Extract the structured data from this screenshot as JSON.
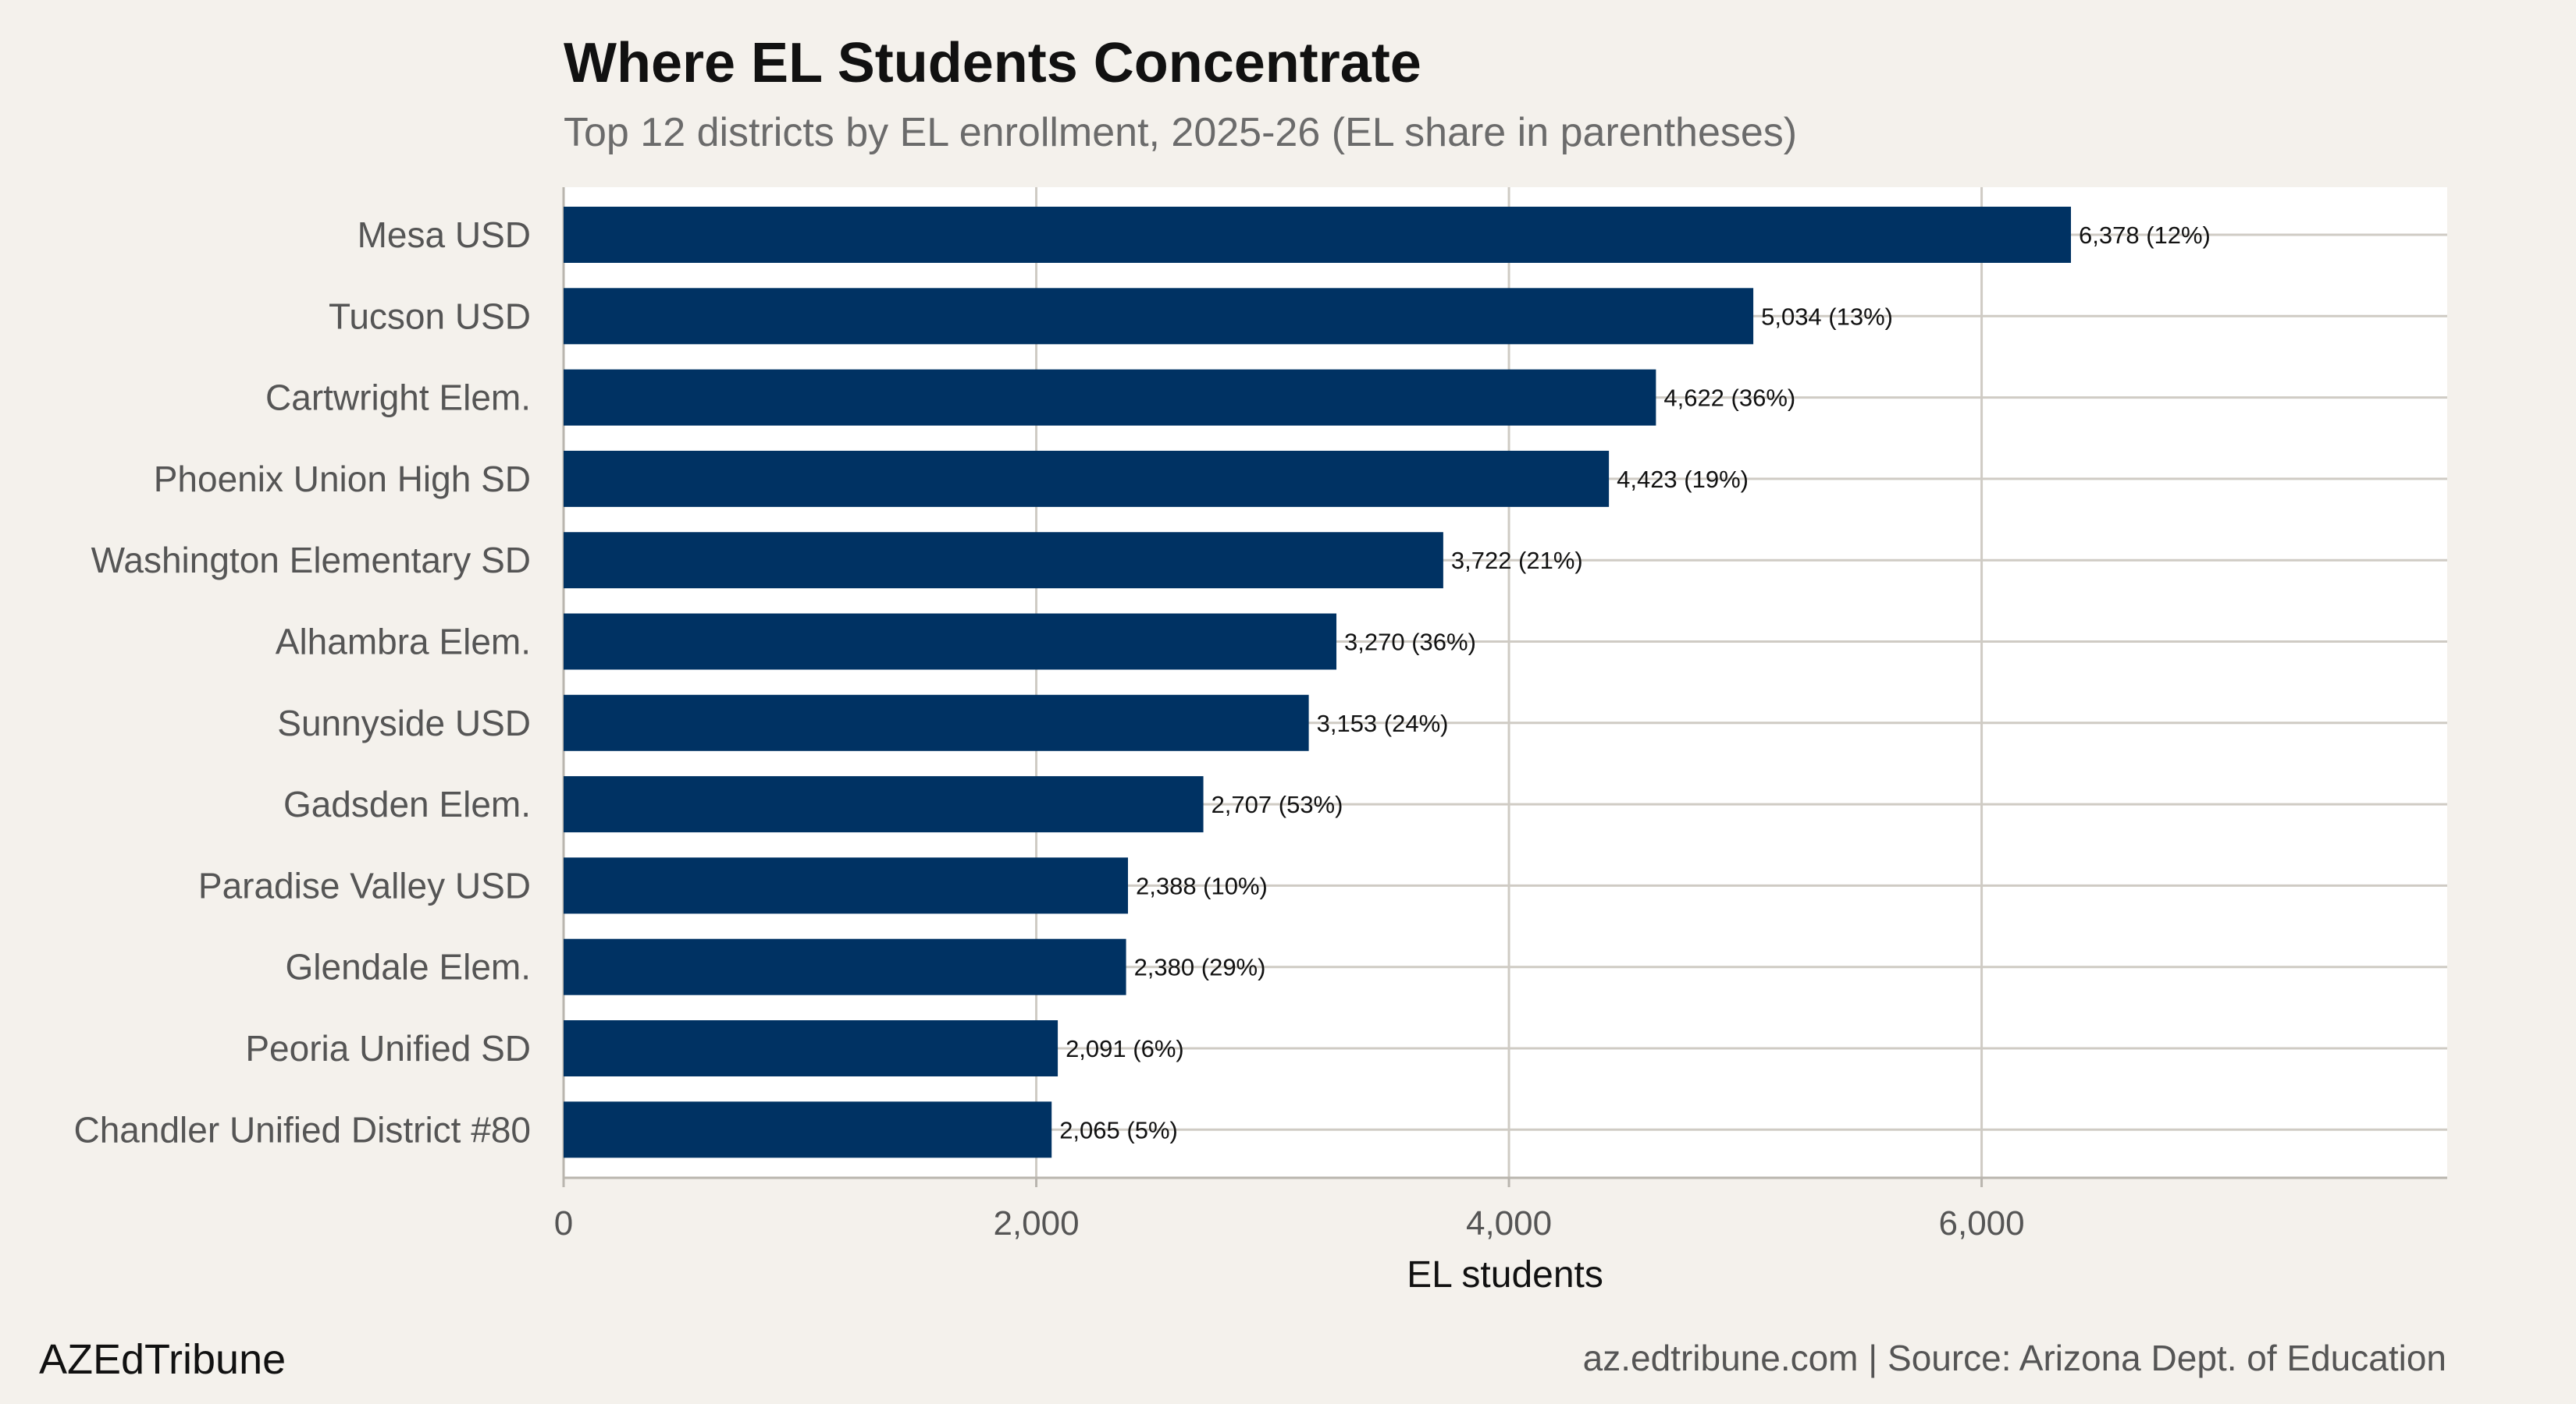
{
  "chart_data": {
    "type": "bar",
    "orientation": "horizontal",
    "title": "Where EL Students Concentrate",
    "subtitle": "Top 12 districts by EL enrollment, 2025-26 (EL share in parentheses)",
    "xlabel": "EL students",
    "ylabel": "",
    "xlim": [
      0,
      7970
    ],
    "xticks": [
      0,
      2000,
      4000,
      6000
    ],
    "xtick_labels": [
      "0",
      "2,000",
      "4,000",
      "6,000"
    ],
    "grid": true,
    "bar_color": "#003263",
    "categories": [
      "Mesa USD",
      "Tucson USD",
      "Cartwright Elem.",
      "Phoenix Union High SD",
      "Washington Elementary SD",
      "Alhambra Elem.",
      "Sunnyside USD",
      "Gadsden Elem.",
      "Paradise Valley USD",
      "Glendale Elem.",
      "Peoria Unified SD",
      "Chandler Unified District #80"
    ],
    "values": [
      6378,
      5034,
      4622,
      4423,
      3722,
      3270,
      3153,
      2707,
      2388,
      2380,
      2091,
      2065
    ],
    "data_labels": [
      "6,378 (12%)",
      "5,034 (13%)",
      "4,622 (36%)",
      "4,423 (19%)",
      "3,722 (21%)",
      "3,270 (36%)",
      "3,153 (24%)",
      "2,707 (53%)",
      "2,388 (10%)",
      "2,380 (29%)",
      "2,091 (6%)",
      "2,065 (5%)"
    ]
  },
  "footer": {
    "brand": "AZEdTribune",
    "source": "az.edtribune.com | Source: Arizona Dept. of Education"
  }
}
